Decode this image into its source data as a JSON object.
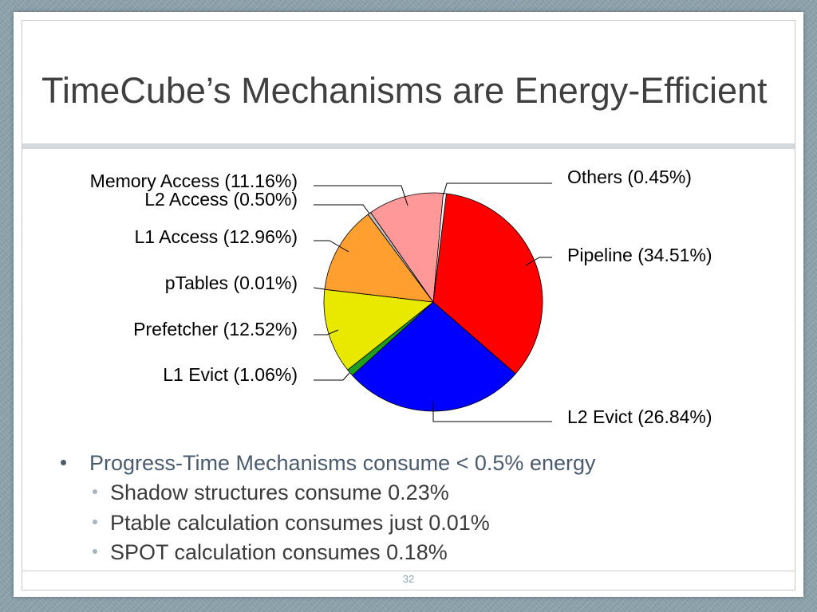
{
  "slide": {
    "title": "TimeCube’s Mechanisms are Energy-Efficient"
  },
  "chart_data": {
    "type": "pie",
    "categories": [
      "Pipeline",
      "L2 Evict",
      "L1 Evict",
      "Prefetcher",
      "pTables",
      "L1 Access",
      "L2 Access",
      "Memory Access",
      "Others"
    ],
    "values": [
      34.51,
      26.84,
      1.06,
      12.52,
      0.01,
      12.96,
      0.5,
      11.16,
      0.45
    ],
    "unit": "%",
    "colors": [
      "#ff0000",
      "#0000ff",
      "#1f9e1f",
      "#e9e900",
      "#a0a0a0",
      "#ff9f2f",
      "#c0c0c0",
      "#ff9999",
      "#ffffff"
    ]
  },
  "bullets": [
    {
      "text": "Progress-Time Mechanisms consume < 0.5% energy",
      "sub": [
        "Shadow structures consume 0.23%",
        "Ptable calculation consumes just 0.01%",
        "SPOT calculation consumes 0.18%"
      ]
    }
  ],
  "footer": {
    "page_number": "32"
  },
  "theme": {
    "background": "#8da3ad",
    "title_text": "#404040",
    "bullet_text": "#4a5b6e",
    "sub_bullet_text": "#3b3b3b",
    "sub_bullet_marker": "#a6b4bf",
    "page_number": "#8fa6bd"
  }
}
